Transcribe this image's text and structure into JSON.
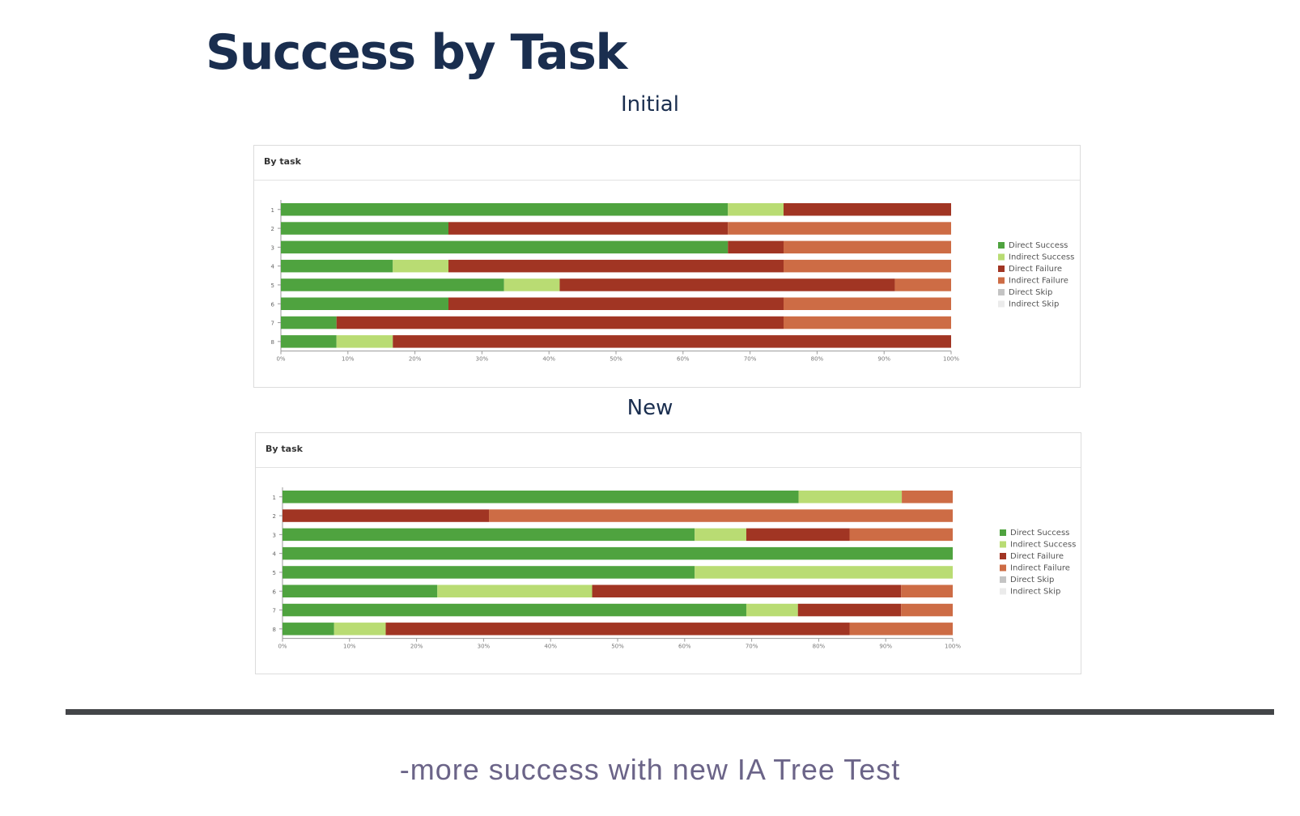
{
  "page": {
    "title": "Success by Task",
    "caption": "-more success with new IA Tree Test"
  },
  "categories_legend": [
    "Direct Success",
    "Indirect Success",
    "Direct Failure",
    "Indirect Failure",
    "Direct Skip",
    "Indirect Skip"
  ],
  "colors": {
    "Direct Success": "#4fa33f",
    "Indirect Success": "#b9dc73",
    "Direct Failure": "#a13523",
    "Indirect Failure": "#cd6c45",
    "Direct Skip": "#c4c4c4",
    "Indirect Skip": "#ebebeb"
  },
  "chart_data": [
    {
      "type": "bar",
      "orientation": "horizontal-stacked",
      "heading": "Initial",
      "panel_title": "By task",
      "categories": [
        "1",
        "2",
        "3",
        "4",
        "5",
        "6",
        "7",
        "8"
      ],
      "series": [
        {
          "name": "Direct Success",
          "values": [
            66.7,
            25,
            66.7,
            16.7,
            33.3,
            25,
            8.3,
            8.3
          ]
        },
        {
          "name": "Indirect Success",
          "values": [
            8.3,
            0,
            0,
            8.3,
            8.3,
            0,
            0,
            8.4
          ]
        },
        {
          "name": "Direct Failure",
          "values": [
            25,
            41.7,
            8.3,
            50,
            50,
            50,
            66.7,
            83.3
          ]
        },
        {
          "name": "Indirect Failure",
          "values": [
            0,
            33.3,
            25,
            25,
            8.4,
            25,
            25,
            0
          ]
        },
        {
          "name": "Direct Skip",
          "values": [
            0,
            0,
            0,
            0,
            0,
            0,
            0,
            0
          ]
        },
        {
          "name": "Indirect Skip",
          "values": [
            0,
            0,
            0,
            0,
            0,
            0,
            0,
            0
          ]
        }
      ],
      "xlim": [
        0,
        100
      ],
      "xticks": [
        "0%",
        "10%",
        "20%",
        "30%",
        "40%",
        "50%",
        "60%",
        "70%",
        "80%",
        "90%",
        "100%"
      ],
      "legend": "right"
    },
    {
      "type": "bar",
      "orientation": "horizontal-stacked",
      "heading": "New",
      "panel_title": "By task",
      "categories": [
        "1",
        "2",
        "3",
        "4",
        "5",
        "6",
        "7",
        "8"
      ],
      "series": [
        {
          "name": "Direct Success",
          "values": [
            77,
            0,
            61.5,
            100,
            61.5,
            23.1,
            69.2,
            7.7
          ]
        },
        {
          "name": "Indirect Success",
          "values": [
            15.4,
            0,
            7.7,
            0,
            38.5,
            23.1,
            7.7,
            7.7
          ]
        },
        {
          "name": "Direct Failure",
          "values": [
            0,
            30.8,
            15.4,
            0,
            0,
            46.1,
            15.4,
            69.2
          ]
        },
        {
          "name": "Indirect Failure",
          "values": [
            7.6,
            69.2,
            15.4,
            0,
            0,
            7.7,
            7.7,
            15.4
          ]
        },
        {
          "name": "Direct Skip",
          "values": [
            0,
            0,
            0,
            0,
            0,
            0,
            0,
            0
          ]
        },
        {
          "name": "Indirect Skip",
          "values": [
            0,
            0,
            0,
            0,
            0,
            0,
            0,
            0
          ]
        }
      ],
      "xlim": [
        0,
        100
      ],
      "xticks": [
        "0%",
        "10%",
        "20%",
        "30%",
        "40%",
        "50%",
        "60%",
        "70%",
        "80%",
        "90%",
        "100%"
      ],
      "legend": "right"
    }
  ]
}
